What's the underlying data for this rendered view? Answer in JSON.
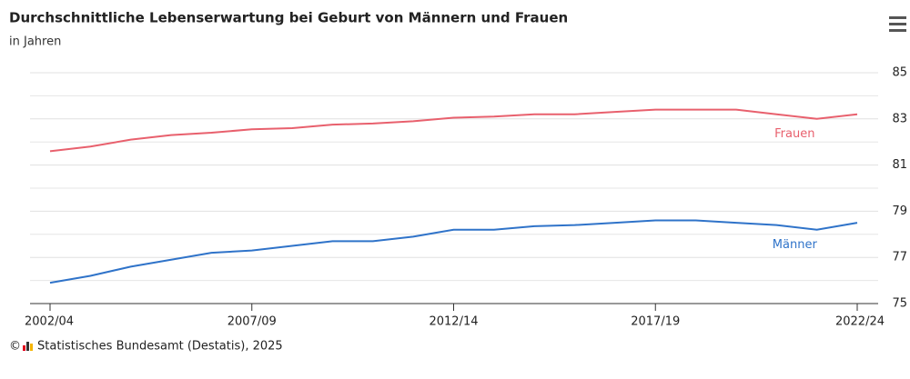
{
  "chart_data": {
    "type": "line",
    "title": "Durchschnittliche Lebenserwartung bei Geburt von Männern und Frauen",
    "subtitle": "in Jahren",
    "copyright": "©",
    "source": "Statistisches Bundesamt (Destatis), 2025",
    "categories": [
      "2002/04",
      null,
      null,
      null,
      null,
      "2007/09",
      null,
      null,
      null,
      null,
      "2012/14",
      null,
      null,
      null,
      null,
      "2017/19",
      null,
      null,
      null,
      null,
      "2022/24"
    ],
    "series": [
      {
        "name": "Frauen",
        "color": "#e8606d",
        "values": [
          81.6,
          81.8,
          82.1,
          82.3,
          82.4,
          82.55,
          82.6,
          82.75,
          82.8,
          82.9,
          83.05,
          83.1,
          83.2,
          83.2,
          83.3,
          83.4,
          83.4,
          83.4,
          83.2,
          83.0,
          83.2
        ]
      },
      {
        "name": "Männer",
        "color": "#2f73c9",
        "values": [
          75.9,
          76.2,
          76.6,
          76.9,
          77.2,
          77.3,
          77.5,
          77.7,
          77.7,
          77.9,
          78.2,
          78.2,
          78.35,
          78.4,
          78.5,
          78.6,
          78.6,
          78.5,
          78.4,
          78.2,
          78.5
        ]
      }
    ],
    "ylim": [
      75,
      85
    ],
    "yticks": [
      75,
      77,
      79,
      81,
      83,
      85
    ],
    "minor_yticks": [
      76,
      78,
      80,
      82,
      84
    ],
    "grid": true
  }
}
